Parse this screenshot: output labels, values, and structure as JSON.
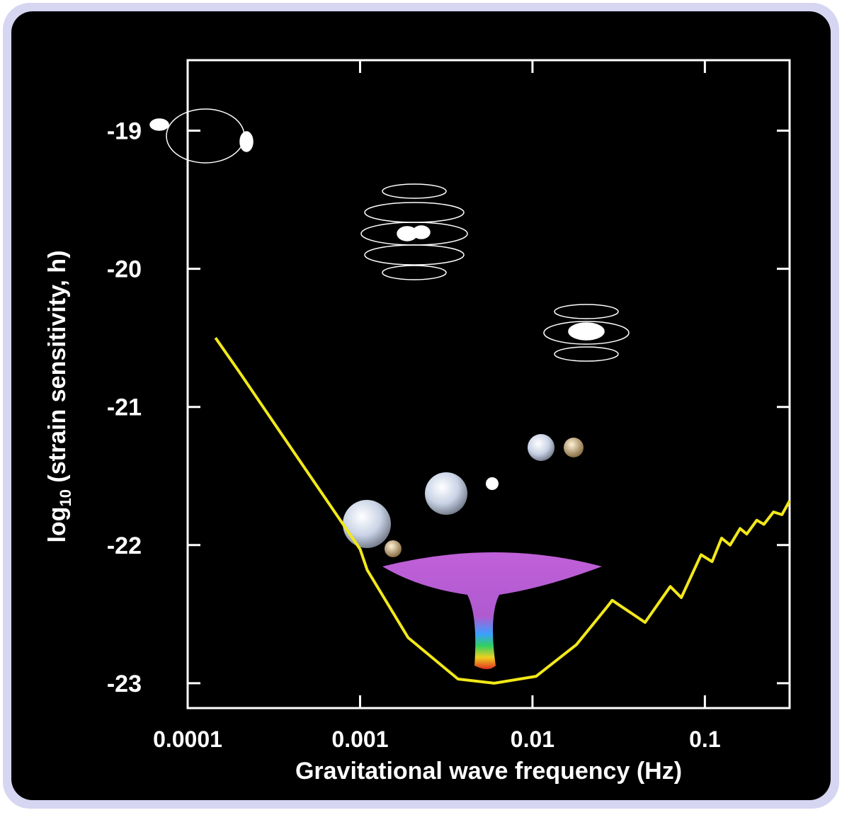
{
  "chart_data": {
    "type": "line",
    "xlabel": "Gravitational wave frequency (Hz)",
    "ylabel": {
      "text": "log",
      "subscript": "10",
      "suffix": "(strain sensitivity, h)"
    },
    "xscale": "log",
    "xlim": [
      0.0001,
      0.31
    ],
    "ylim": [
      -23.18,
      -18.49
    ],
    "xticks": [
      0.0001,
      0.001,
      0.01,
      0.1
    ],
    "yticks": [
      -19,
      -20,
      -21,
      -22,
      -23
    ],
    "series": [
      {
        "color": "#f2e81a",
        "x": [
          0.000145,
          0.0002,
          0.0005,
          0.001,
          0.0011,
          0.0019,
          0.0037,
          0.006,
          0.0105,
          0.018,
          0.027,
          0.029,
          0.045,
          0.063,
          0.073,
          0.095,
          0.11,
          0.125,
          0.14,
          0.16,
          0.175,
          0.2,
          0.22,
          0.25,
          0.28,
          0.31
        ],
        "values": [
          -20.5,
          -20.75,
          -21.48,
          -22.03,
          -22.18,
          -22.67,
          -22.97,
          -23.0,
          -22.95,
          -22.72,
          -22.45,
          -22.4,
          -22.56,
          -22.3,
          -22.38,
          -22.07,
          -22.12,
          -21.95,
          -22.0,
          -21.88,
          -21.92,
          -21.82,
          -21.85,
          -21.76,
          -21.78,
          -21.68
        ]
      }
    ]
  }
}
